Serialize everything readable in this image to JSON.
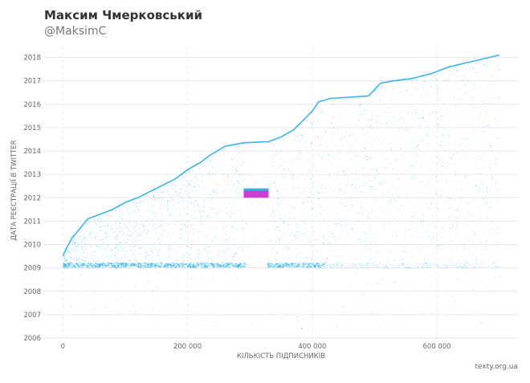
{
  "header": {
    "title": "Максим Чмерковський",
    "handle": "@MaksimC"
  },
  "footer": {
    "source": "texty.org.ua"
  },
  "chart_data": {
    "type": "scatter",
    "title": "Максим Чмерковський",
    "subtitle": "@MaksimC",
    "xlabel": "КІЛЬКІСТЬ ПІДПИСНИКІВ",
    "ylabel": "ДАТА РЕЄСТРАЦІЇ В TWITTER",
    "xlim": [
      -30000,
      730000
    ],
    "ylim": [
      2006,
      2018.5
    ],
    "x_ticks": [
      0,
      200000,
      400000,
      600000
    ],
    "x_tick_labels": [
      "0",
      "200 000",
      "400 000",
      "600 000"
    ],
    "y_ticks": [
      2006,
      2007,
      2008,
      2009,
      2010,
      2011,
      2012,
      2013,
      2014,
      2015,
      2016,
      2017,
      2018
    ],
    "y_tick_labels": [
      "2006",
      "2007",
      "2008",
      "2009",
      "2010",
      "2011",
      "2012",
      "2013",
      "2014",
      "2015",
      "2016",
      "2017",
      "2018"
    ],
    "grid": true,
    "legend": "none",
    "colors": {
      "points": "#1aa7e0",
      "cluster": "#c020c8",
      "grid": "#e6e6e6"
    },
    "series": [
      {
        "name": "",
        "description_points": "envelope of follower registration dates (upper edge)",
        "x": [
          0,
          5000,
          15000,
          25000,
          40000,
          60000,
          80000,
          100000,
          120000,
          150000,
          180000,
          200000,
          220000,
          235000,
          260000,
          290000,
          330000,
          350000,
          370000,
          385000,
          400000,
          410000,
          430000,
          490000,
          510000,
          530000,
          560000,
          590000,
          620000,
          660000,
          700000
        ],
        "y": [
          2009.5,
          2009.8,
          2010.3,
          2010.6,
          2011.1,
          2011.3,
          2011.5,
          2011.8,
          2012.0,
          2012.4,
          2012.8,
          2013.2,
          2013.5,
          2013.8,
          2014.2,
          2014.35,
          2014.4,
          2014.6,
          2014.9,
          2015.3,
          2015.7,
          2016.1,
          2016.25,
          2016.35,
          2016.9,
          2017.0,
          2017.1,
          2017.3,
          2017.6,
          2017.85,
          2018.1
        ]
      }
    ],
    "cluster": {
      "x_range": [
        290000,
        330000
      ],
      "y_range": [
        2012.0,
        2012.3
      ]
    }
  }
}
